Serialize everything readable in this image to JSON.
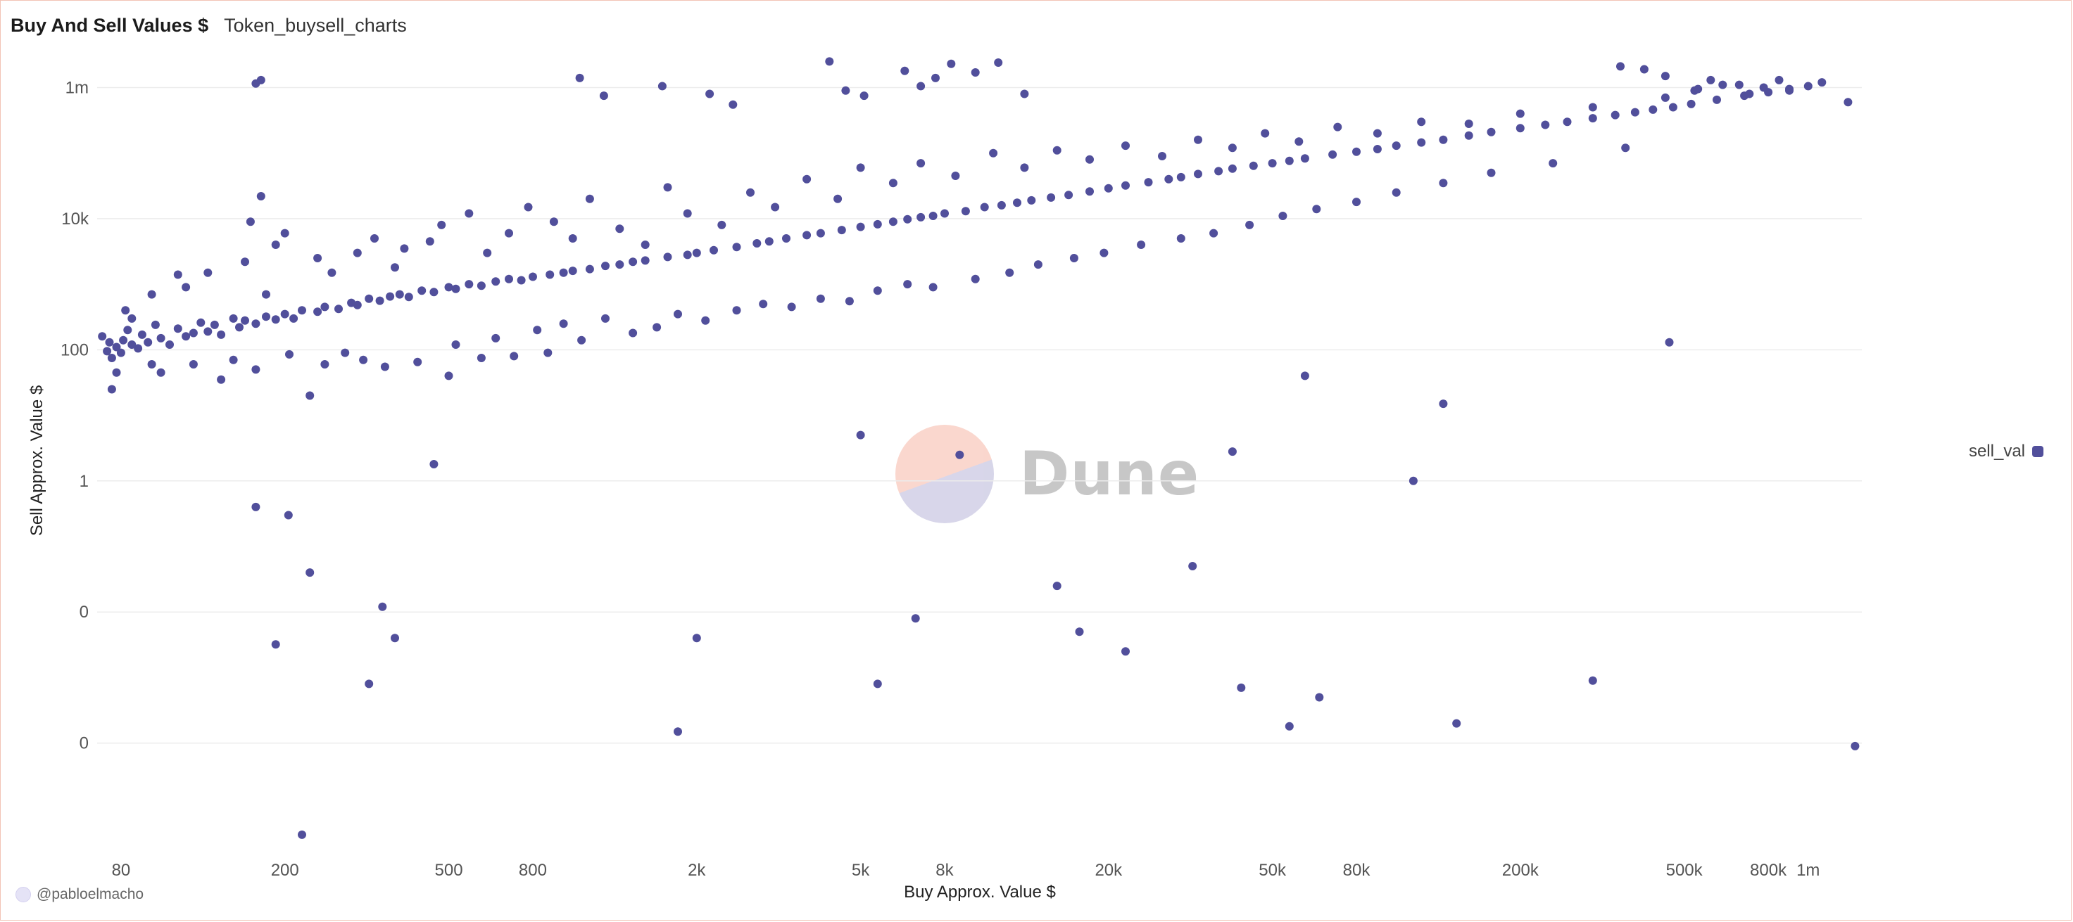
{
  "header": {
    "title": "Buy And Sell Values $",
    "query_name": "Token_buysell_charts"
  },
  "legend": {
    "label": "sell_val",
    "color": "#514f9b"
  },
  "watermark": {
    "text": "Dune"
  },
  "credit": {
    "user": "@pabloelmacho"
  },
  "chart_data": {
    "type": "scatter",
    "xlabel": "Buy Approx. Value $",
    "ylabel": "Sell Approx. Value $",
    "x_scale": "log",
    "y_scale": "log",
    "grid": true,
    "legend_position": "right",
    "x_ticks": [
      {
        "value": 80,
        "label": "80"
      },
      {
        "value": 200,
        "label": "200"
      },
      {
        "value": 500,
        "label": "500"
      },
      {
        "value": 800,
        "label": "800"
      },
      {
        "value": 2000,
        "label": "2k"
      },
      {
        "value": 5000,
        "label": "5k"
      },
      {
        "value": 8000,
        "label": "8k"
      },
      {
        "value": 20000,
        "label": "20k"
      },
      {
        "value": 50000,
        "label": "50k"
      },
      {
        "value": 80000,
        "label": "80k"
      },
      {
        "value": 200000,
        "label": "200k"
      },
      {
        "value": 500000,
        "label": "500k"
      },
      {
        "value": 800000,
        "label": "800k"
      },
      {
        "value": 1000000,
        "label": "1m"
      }
    ],
    "y_ticks": [
      {
        "value": 1000000,
        "label": "1m"
      },
      {
        "value": 10000,
        "label": "10k"
      },
      {
        "value": 100,
        "label": "100"
      },
      {
        "value": 1,
        "label": "1"
      },
      {
        "value": 0.01,
        "label": "0"
      },
      {
        "value": 0.0001,
        "label": "0"
      }
    ],
    "xlim": [
      70,
      1350000
    ],
    "ylim": [
      2e-06,
      3000000
    ],
    "series": [
      {
        "name": "sell_val",
        "color": "#514f9b",
        "points": [
          [
            72,
            160
          ],
          [
            74,
            95
          ],
          [
            75,
            130
          ],
          [
            76,
            75
          ],
          [
            78,
            110
          ],
          [
            80,
            90
          ],
          [
            81,
            140
          ],
          [
            83,
            200
          ],
          [
            85,
            120
          ],
          [
            88,
            105
          ],
          [
            90,
            170
          ],
          [
            93,
            130
          ],
          [
            95,
            60
          ],
          [
            97,
            240
          ],
          [
            100,
            150
          ],
          [
            105,
            120
          ],
          [
            110,
            210
          ],
          [
            115,
            160
          ],
          [
            120,
            180
          ],
          [
            125,
            260
          ],
          [
            130,
            190
          ],
          [
            135,
            240
          ],
          [
            140,
            170
          ],
          [
            150,
            300
          ],
          [
            155,
            220
          ],
          [
            160,
            280
          ],
          [
            170,
            250
          ],
          [
            180,
            320
          ],
          [
            190,
            290
          ],
          [
            200,
            350
          ],
          [
            210,
            300
          ],
          [
            220,
            400
          ],
          [
            240,
            380
          ],
          [
            250,
            450
          ],
          [
            270,
            420
          ],
          [
            290,
            520
          ],
          [
            300,
            480
          ],
          [
            320,
            600
          ],
          [
            340,
            560
          ],
          [
            360,
            650
          ],
          [
            380,
            700
          ],
          [
            400,
            640
          ],
          [
            430,
            800
          ],
          [
            460,
            760
          ],
          [
            500,
            900
          ],
          [
            520,
            850
          ],
          [
            560,
            1000
          ],
          [
            600,
            950
          ],
          [
            650,
            1100
          ],
          [
            700,
            1200
          ],
          [
            750,
            1150
          ],
          [
            800,
            1300
          ],
          [
            880,
            1400
          ],
          [
            950,
            1500
          ],
          [
            1000,
            1600
          ],
          [
            1100,
            1700
          ],
          [
            1200,
            1900
          ],
          [
            1300,
            2000
          ],
          [
            1400,
            2200
          ],
          [
            1500,
            2300
          ],
          [
            1700,
            2600
          ],
          [
            1900,
            2800
          ],
          [
            2000,
            3000
          ],
          [
            2200,
            3300
          ],
          [
            2500,
            3700
          ],
          [
            2800,
            4200
          ],
          [
            3000,
            4500
          ],
          [
            3300,
            5000
          ],
          [
            3700,
            5600
          ],
          [
            4000,
            6000
          ],
          [
            4500,
            6700
          ],
          [
            5000,
            7500
          ],
          [
            5500,
            8200
          ],
          [
            6000,
            9000
          ],
          [
            6500,
            9800
          ],
          [
            7000,
            10500
          ],
          [
            7500,
            11000
          ],
          [
            8000,
            12000
          ],
          [
            9000,
            13000
          ],
          [
            10000,
            15000
          ],
          [
            11000,
            16000
          ],
          [
            12000,
            17500
          ],
          [
            13000,
            19000
          ],
          [
            14500,
            21000
          ],
          [
            16000,
            23000
          ],
          [
            18000,
            26000
          ],
          [
            20000,
            29000
          ],
          [
            22000,
            32000
          ],
          [
            25000,
            36000
          ],
          [
            28000,
            40000
          ],
          [
            30000,
            43000
          ],
          [
            33000,
            48000
          ],
          [
            37000,
            53000
          ],
          [
            40000,
            58000
          ],
          [
            45000,
            64000
          ],
          [
            50000,
            70000
          ],
          [
            55000,
            76000
          ],
          [
            60000,
            83000
          ],
          [
            70000,
            95000
          ],
          [
            80000,
            105000
          ],
          [
            90000,
            115000
          ],
          [
            100000,
            130000
          ],
          [
            115000,
            145000
          ],
          [
            130000,
            160000
          ],
          [
            150000,
            185000
          ],
          [
            170000,
            210000
          ],
          [
            200000,
            240000
          ],
          [
            230000,
            270000
          ],
          [
            260000,
            300000
          ],
          [
            300000,
            340000
          ],
          [
            340000,
            380000
          ],
          [
            380000,
            420000
          ],
          [
            420000,
            460000
          ],
          [
            470000,
            500000
          ],
          [
            520000,
            560000
          ],
          [
            600000,
            650000
          ],
          [
            700000,
            750000
          ],
          [
            800000,
            850000
          ],
          [
            900000,
            950000
          ],
          [
            1000000,
            1050000
          ],
          [
            76,
            25
          ],
          [
            78,
            45
          ],
          [
            82,
            400
          ],
          [
            85,
            300
          ],
          [
            95,
            700
          ],
          [
            100,
            45
          ],
          [
            110,
            1400
          ],
          [
            115,
            900
          ],
          [
            120,
            60
          ],
          [
            130,
            1500
          ],
          [
            140,
            35
          ],
          [
            150,
            70
          ],
          [
            160,
            2200
          ],
          [
            165,
            9000
          ],
          [
            170,
            50
          ],
          [
            175,
            22000
          ],
          [
            180,
            700
          ],
          [
            190,
            4000
          ],
          [
            200,
            6000
          ],
          [
            205,
            85
          ],
          [
            230,
            20
          ],
          [
            240,
            2500
          ],
          [
            250,
            60
          ],
          [
            260,
            1500
          ],
          [
            280,
            90
          ],
          [
            300,
            3000
          ],
          [
            310,
            70
          ],
          [
            330,
            5000
          ],
          [
            350,
            55
          ],
          [
            370,
            1800
          ],
          [
            390,
            3500
          ],
          [
            420,
            65
          ],
          [
            450,
            4500
          ],
          [
            480,
            8000
          ],
          [
            500,
            40
          ],
          [
            520,
            120
          ],
          [
            560,
            12000
          ],
          [
            600,
            75
          ],
          [
            620,
            3000
          ],
          [
            650,
            150
          ],
          [
            700,
            6000
          ],
          [
            720,
            80
          ],
          [
            780,
            15000
          ],
          [
            820,
            200
          ],
          [
            870,
            90
          ],
          [
            900,
            9000
          ],
          [
            950,
            250
          ],
          [
            1000,
            5000
          ],
          [
            1050,
            140
          ],
          [
            1100,
            20000
          ],
          [
            1200,
            300
          ],
          [
            1300,
            7000
          ],
          [
            1400,
            180
          ],
          [
            1500,
            4000
          ],
          [
            1600,
            220
          ],
          [
            1700,
            30000
          ],
          [
            1800,
            350
          ],
          [
            1900,
            12000
          ],
          [
            2100,
            280
          ],
          [
            2300,
            8000
          ],
          [
            2500,
            400
          ],
          [
            2700,
            25000
          ],
          [
            2900,
            500
          ],
          [
            3100,
            15000
          ],
          [
            3400,
            450
          ],
          [
            3700,
            40000
          ],
          [
            4000,
            600
          ],
          [
            4400,
            20000
          ],
          [
            4700,
            550
          ],
          [
            5000,
            60000
          ],
          [
            5500,
            800
          ],
          [
            6000,
            35000
          ],
          [
            6500,
            1000
          ],
          [
            7000,
            70000
          ],
          [
            7500,
            900
          ],
          [
            8500,
            45000
          ],
          [
            9500,
            1200
          ],
          [
            10500,
            100000
          ],
          [
            11500,
            1500
          ],
          [
            12500,
            60000
          ],
          [
            13500,
            2000
          ],
          [
            15000,
            110000
          ],
          [
            16500,
            2500
          ],
          [
            18000,
            80000
          ],
          [
            19500,
            3000
          ],
          [
            22000,
            130000
          ],
          [
            24000,
            4000
          ],
          [
            27000,
            90000
          ],
          [
            30000,
            5000
          ],
          [
            33000,
            160000
          ],
          [
            36000,
            6000
          ],
          [
            40000,
            120000
          ],
          [
            44000,
            8000
          ],
          [
            48000,
            200000
          ],
          [
            53000,
            11000
          ],
          [
            58000,
            150000
          ],
          [
            64000,
            14000
          ],
          [
            72000,
            250000
          ],
          [
            80000,
            18000
          ],
          [
            90000,
            200000
          ],
          [
            100000,
            25000
          ],
          [
            115000,
            300000
          ],
          [
            130000,
            35000
          ],
          [
            150000,
            280000
          ],
          [
            170000,
            50000
          ],
          [
            200000,
            400000
          ],
          [
            240000,
            70000
          ],
          [
            300000,
            500000
          ],
          [
            360000,
            120000
          ],
          [
            450000,
            700000
          ],
          [
            530000,
            900000
          ],
          [
            620000,
            1100000
          ],
          [
            720000,
            800000
          ],
          [
            850000,
            1300000
          ],
          [
            170,
            0.4
          ],
          [
            190,
            0.0032
          ],
          [
            204,
            0.3
          ],
          [
            220,
            4e-06
          ],
          [
            230,
            0.04
          ],
          [
            320,
            0.0008
          ],
          [
            345,
            0.012
          ],
          [
            370,
            0.004
          ],
          [
            460,
            1.8
          ],
          [
            1800,
            0.00015
          ],
          [
            2000,
            0.004
          ],
          [
            5000,
            5
          ],
          [
            5500,
            0.0008
          ],
          [
            6800,
            0.008
          ],
          [
            8700,
            2.5
          ],
          [
            15000,
            0.025
          ],
          [
            17000,
            0.005
          ],
          [
            22000,
            0.0025
          ],
          [
            32000,
            0.05
          ],
          [
            40000,
            2.8
          ],
          [
            42000,
            0.0007
          ],
          [
            55000,
            0.00018
          ],
          [
            60000,
            40
          ],
          [
            65000,
            0.0005
          ],
          [
            110000,
            1
          ],
          [
            130000,
            15
          ],
          [
            140000,
            0.0002
          ],
          [
            300000,
            0.0009
          ],
          [
            460000,
            130
          ],
          [
            1300000,
            9e-05
          ],
          [
            1250000,
            600000
          ],
          [
            1080000,
            1200000
          ],
          [
            900000,
            900000
          ],
          [
            780000,
            1000000
          ],
          [
            680000,
            1100000
          ],
          [
            580000,
            1300000
          ],
          [
            540000,
            950000
          ],
          [
            450000,
            1500000
          ],
          [
            400000,
            1900000
          ],
          [
            350000,
            2100000
          ],
          [
            4200,
            2500000
          ],
          [
            4600,
            900000
          ],
          [
            5100,
            750000
          ],
          [
            6400,
            1800000
          ],
          [
            7000,
            1050000
          ],
          [
            7600,
            1400000
          ],
          [
            8300,
            2300000
          ],
          [
            9500,
            1700000
          ],
          [
            10800,
            2400000
          ],
          [
            12500,
            800000
          ],
          [
            1650,
            1050000
          ],
          [
            2150,
            800000
          ],
          [
            2450,
            550000
          ],
          [
            170,
            1150000
          ],
          [
            175,
            1300000
          ],
          [
            1040,
            1400000
          ],
          [
            1190,
            750000
          ]
        ]
      }
    ]
  }
}
